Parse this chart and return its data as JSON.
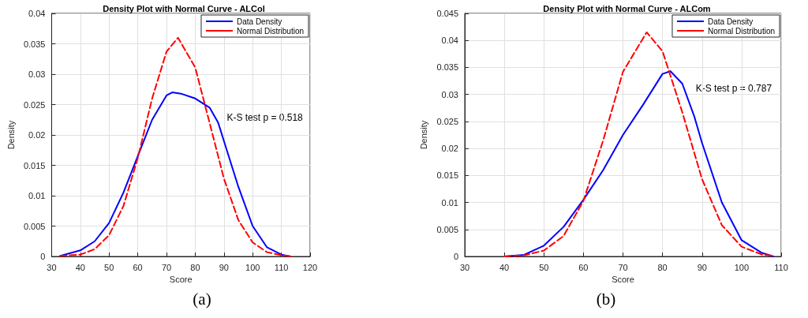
{
  "chart_data": [
    {
      "type": "line",
      "title": "Density Plot with Normal Curve - ALCol",
      "xlabel": "Score",
      "ylabel": "Density",
      "xlim": [
        30,
        120
      ],
      "xticks": [
        30,
        40,
        50,
        60,
        70,
        80,
        90,
        100,
        110,
        120
      ],
      "ylim": [
        0,
        0.04
      ],
      "yticks": [
        0,
        0.005,
        0.01,
        0.015,
        0.02,
        0.025,
        0.03,
        0.035,
        0.04
      ],
      "grid": true,
      "legend": "top right",
      "marker": "none",
      "annotations": [
        "K-S test p = 0.518",
        "(a)"
      ],
      "series": [
        {
          "name": "Data Density",
          "color": "#0000ff",
          "line_style": "solid",
          "x": [
            33,
            40,
            45,
            50,
            55,
            60,
            65,
            70,
            72,
            75,
            80,
            85,
            88,
            90,
            95,
            100,
            105,
            110,
            113
          ],
          "values": [
            0.0001,
            0.001,
            0.0025,
            0.0055,
            0.0105,
            0.0165,
            0.0225,
            0.0265,
            0.027,
            0.0268,
            0.026,
            0.0245,
            0.022,
            0.019,
            0.0115,
            0.005,
            0.0015,
            0.0003,
            0
          ]
        },
        {
          "name": "Normal Distribution",
          "color": "#ff0000",
          "line_style": "dashed",
          "x": [
            33,
            40,
            45,
            50,
            55,
            60,
            65,
            70,
            74,
            80,
            85,
            90,
            95,
            100,
            105,
            110,
            114
          ],
          "values": [
            0.0001,
            0.0003,
            0.0012,
            0.0035,
            0.0083,
            0.0162,
            0.026,
            0.0337,
            0.036,
            0.0311,
            0.022,
            0.0128,
            0.006,
            0.0023,
            0.0007,
            0.0002,
            0
          ]
        }
      ]
    },
    {
      "type": "line",
      "title": "Density Plot with Normal Curve - ALCom",
      "xlabel": "Score",
      "ylabel": "Density",
      "xlim": [
        30,
        110
      ],
      "xticks": [
        30,
        40,
        50,
        60,
        70,
        80,
        90,
        100,
        110
      ],
      "ylim": [
        0,
        0.045
      ],
      "yticks": [
        0,
        0.005,
        0.01,
        0.015,
        0.02,
        0.025,
        0.03,
        0.035,
        0.04,
        0.045
      ],
      "grid": true,
      "legend": "top right",
      "marker": "none",
      "annotations": [
        "K-S test p = 0.787",
        "(b)"
      ],
      "series": [
        {
          "name": "Data Density",
          "color": "#0000ff",
          "line_style": "solid",
          "x": [
            40,
            45,
            50,
            55,
            60,
            65,
            70,
            75,
            80,
            82,
            85,
            88,
            90,
            95,
            100,
            105,
            108
          ],
          "values": [
            0,
            0.0003,
            0.002,
            0.0055,
            0.0105,
            0.016,
            0.0225,
            0.028,
            0.0338,
            0.0343,
            0.032,
            0.026,
            0.021,
            0.01,
            0.003,
            0.0007,
            0
          ]
        },
        {
          "name": "Normal Distribution",
          "color": "#ff0000",
          "line_style": "dashed",
          "x": [
            40,
            45,
            50,
            55,
            60,
            65,
            70,
            76,
            80,
            85,
            90,
            95,
            100,
            105,
            108
          ],
          "values": [
            0,
            0.0002,
            0.0011,
            0.0038,
            0.0103,
            0.0215,
            0.0342,
            0.0415,
            0.038,
            0.0267,
            0.0143,
            0.0058,
            0.0018,
            0.0004,
            0.0001
          ]
        }
      ]
    }
  ]
}
